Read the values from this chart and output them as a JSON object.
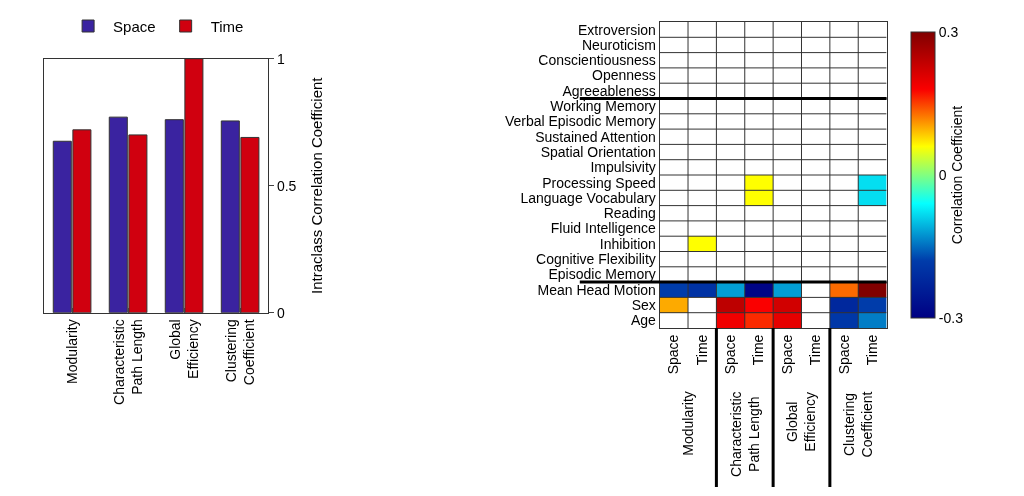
{
  "chart_data": [
    {
      "type": "bar",
      "ylabel": "Intraclass Correlation Coefficient",
      "categories": [
        "Modularity",
        "Characteristic\nPath Length",
        "Global\nEfficiency",
        "Clustering\nCoefficient"
      ],
      "series": [
        {
          "name": "Space",
          "color": "#3a23a0",
          "values": [
            0.675,
            0.77,
            0.76,
            0.755
          ]
        },
        {
          "name": "Time",
          "color": "#d0000f",
          "values": [
            0.72,
            0.7,
            1.0,
            0.69
          ]
        }
      ],
      "ylim": [
        0,
        1
      ],
      "yticks": [
        0,
        0.5,
        1
      ],
      "grid": false,
      "legend": "top"
    },
    {
      "type": "heatmap",
      "clabel": "Correlation Coefficient",
      "categories": [
        "Space",
        "Time",
        "Space",
        "Time",
        "Space",
        "Time",
        "Space",
        "Time"
      ],
      "y_categories": [
        "Extroversion",
        "Neuroticism",
        "Conscientiousness",
        "Openness",
        "Agreeableness",
        "Working Memory",
        "Verbal Episodic Memory",
        "Sustained Attention",
        "Spatial Orientation",
        "Impulsivity",
        "Processing Speed",
        "Language Vocabulary",
        "Reading",
        "Fluid Intelligence",
        "Inhibition",
        "Cognitive Flexibility",
        "Episodic Memory",
        "Mean Head Motion",
        "Sex",
        "Age"
      ],
      "cells": [
        [
          null,
          null,
          null,
          null,
          null,
          null,
          null,
          null
        ],
        [
          null,
          null,
          null,
          null,
          null,
          null,
          null,
          null
        ],
        [
          null,
          null,
          null,
          null,
          null,
          null,
          null,
          null
        ],
        [
          null,
          null,
          null,
          null,
          null,
          null,
          null,
          null
        ],
        [
          null,
          null,
          null,
          null,
          null,
          null,
          null,
          null
        ],
        [
          null,
          null,
          null,
          null,
          null,
          null,
          null,
          null
        ],
        [
          null,
          null,
          null,
          null,
          null,
          null,
          null,
          null
        ],
        [
          null,
          null,
          null,
          null,
          null,
          null,
          null,
          null
        ],
        [
          null,
          null,
          null,
          null,
          null,
          null,
          null,
          null
        ],
        [
          null,
          null,
          null,
          null,
          null,
          null,
          null,
          null
        ],
        [
          null,
          null,
          null,
          0.06,
          null,
          null,
          null,
          -0.08
        ],
        [
          null,
          null,
          null,
          0.06,
          null,
          null,
          null,
          -0.08
        ],
        [
          null,
          null,
          null,
          null,
          null,
          null,
          null,
          null
        ],
        [
          null,
          null,
          null,
          null,
          null,
          null,
          null,
          null
        ],
        [
          null,
          0.06,
          null,
          null,
          null,
          null,
          null,
          null
        ],
        [
          null,
          null,
          null,
          null,
          null,
          null,
          null,
          null
        ],
        [
          null,
          null,
          null,
          null,
          null,
          null,
          null,
          null
        ],
        [
          -0.18,
          -0.2,
          -0.12,
          -0.29,
          -0.12,
          null,
          0.13,
          0.3
        ],
        [
          0.1,
          null,
          0.24,
          0.18,
          0.22,
          null,
          -0.22,
          -0.18
        ],
        [
          null,
          null,
          0.19,
          0.16,
          0.2,
          null,
          -0.19,
          -0.14
        ]
      ],
      "clim": [
        -0.3,
        0.3
      ],
      "cticks": [
        0.3,
        0,
        -0.3
      ],
      "grid": true,
      "annotations": [
        "Modularity",
        "Characteristic\nPath Length",
        "Global\nEfficiency",
        "Clustering\nCoefficient"
      ]
    }
  ]
}
